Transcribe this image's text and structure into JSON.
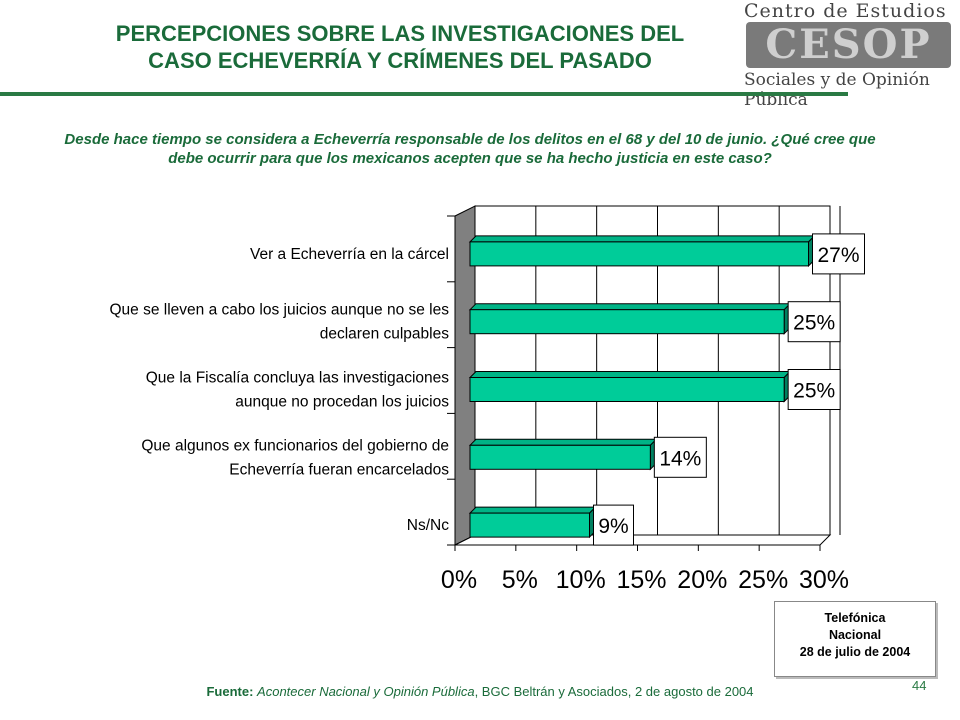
{
  "header": {
    "title_line1": "PERCEPCIONES SOBRE LAS INVESTIGACIONES DEL",
    "title_line2": "CASO ECHEVERRÍA Y CRÍMENES DEL PASADO"
  },
  "logo": {
    "top": "Centro de Estudios",
    "mark": "CESOP",
    "bottom": "Sociales y de Opinión Pública"
  },
  "question": "Desde hace tiempo se considera a Echeverría responsable de los delitos en el 68 y del 10 de junio. ¿Qué cree que debe ocurrir para que los mexicanos acepten que se ha hecho justicia en este caso?",
  "chart_data": {
    "type": "bar",
    "orientation": "horizontal",
    "categories": [
      [
        "Ver a Echeverría en la cárcel"
      ],
      [
        "Que se lleven a cabo los juicios aunque no se les",
        "declaren culpables"
      ],
      [
        "Que la Fiscalía concluya las investigaciones",
        "aunque no procedan los juicios"
      ],
      [
        "Que algunos ex funcionarios del gobierno de",
        "Echeverría fueran encarcelados"
      ],
      [
        "Ns/Nc"
      ]
    ],
    "values": [
      27,
      25,
      25,
      14,
      9
    ],
    "data_labels": [
      "27%",
      "25%",
      "25%",
      "14%",
      "9%"
    ],
    "xlim": [
      0,
      30
    ],
    "xticks": [
      "0%",
      "5%",
      "10%",
      "15%",
      "20%",
      "25%",
      "30%"
    ],
    "bar_color": "#00cc99",
    "grid": "vertical",
    "legend": "none"
  },
  "callout": {
    "line1": "Telefónica",
    "line2": "Nacional",
    "line3": "28 de julio de 2004"
  },
  "page_number": "44",
  "source": {
    "label": "Fuente:",
    "publication": "Acontecer Nacional y Opinión Pública",
    "rest": ", BGC Beltrán y Asociados, 2 de agosto de 2004"
  },
  "colors": {
    "title_green": "#1a6b3a",
    "rule_green": "#2a7a44",
    "bar_fill": "#00cc99",
    "wall_gray": "#808080"
  }
}
